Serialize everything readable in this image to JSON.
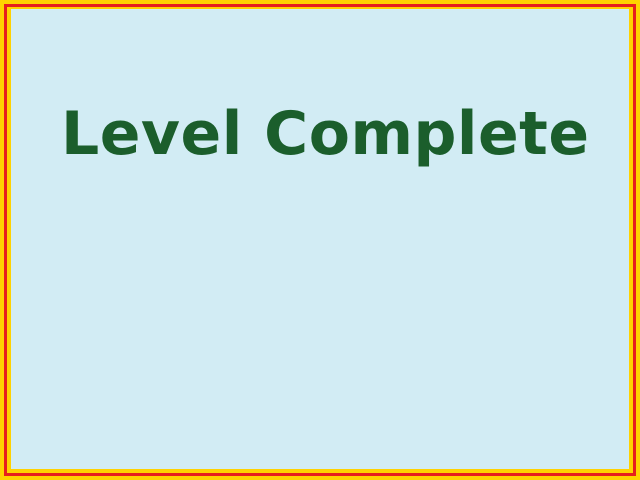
{
  "screen": {
    "title": "Level Complete"
  },
  "colors": {
    "background": "#d2ecf4",
    "title_text": "#1b5e2c",
    "border_outer": "#ffd200",
    "border_inner": "#e61e1e"
  }
}
